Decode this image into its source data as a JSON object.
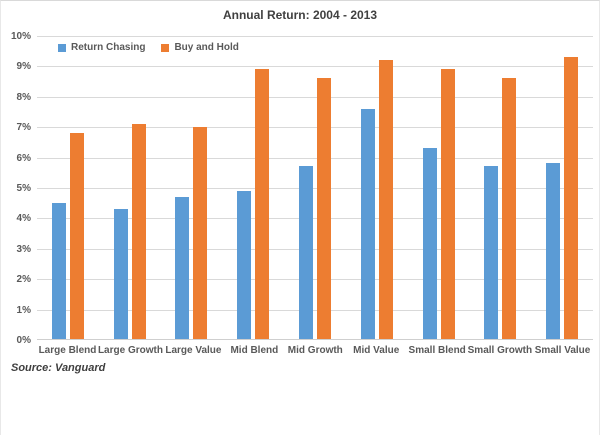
{
  "chart_data": {
    "type": "bar",
    "title": "Annual Return: 2004 - 2013",
    "categories": [
      "Large Blend",
      "Large Growth",
      "Large Value",
      "Mid Blend",
      "Mid Growth",
      "Mid Value",
      "Small Blend",
      "Small Growth",
      "Small Value"
    ],
    "series": [
      {
        "name": "Return Chasing",
        "color": "#5B9BD5",
        "values": [
          4.5,
          4.3,
          4.7,
          4.9,
          5.7,
          7.6,
          6.3,
          5.7,
          5.8
        ]
      },
      {
        "name": "Buy and Hold",
        "color": "#ED7D31",
        "values": [
          6.8,
          7.1,
          7.0,
          8.9,
          8.6,
          9.2,
          8.9,
          8.6,
          9.3
        ]
      }
    ],
    "ylim": [
      0,
      10
    ],
    "ytick_step": 1,
    "ytick_labels": [
      "10%",
      "9%",
      "8%",
      "7%",
      "6%",
      "5%",
      "4%",
      "3%",
      "2%",
      "1%",
      "0%"
    ],
    "grid": true,
    "gridline_color": "#d9d9d9",
    "legend_position": "inside-top-left"
  },
  "footer": {
    "source": "Source: Vanguard"
  }
}
